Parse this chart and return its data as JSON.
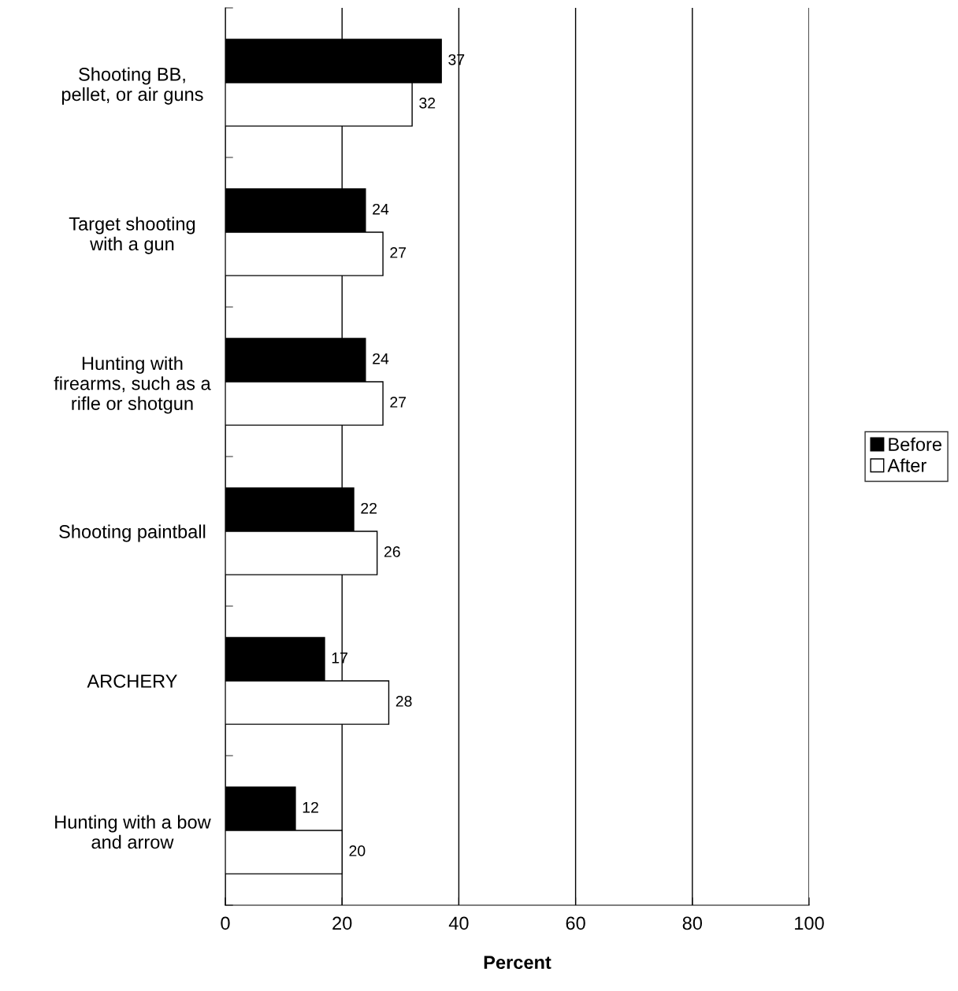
{
  "chart_data": {
    "type": "bar",
    "orientation": "horizontal",
    "categories": [
      "Shooting BB,\npellet, or air guns",
      "Target shooting\nwith a gun",
      "Hunting with\nfirearms, such as a\nrifle or shotgun",
      "Shooting paintball",
      "ARCHERY",
      "Hunting with a bow\nand arrow"
    ],
    "series": [
      {
        "name": "Before",
        "color": "#000000",
        "values": [
          37,
          24,
          24,
          22,
          17,
          12
        ]
      },
      {
        "name": "After",
        "color": "#ffffff",
        "values": [
          32,
          27,
          27,
          26,
          28,
          20
        ]
      }
    ],
    "xlabel": "Percent",
    "xlim": [
      0,
      100
    ],
    "xticks": [
      0,
      20,
      40,
      60,
      80,
      100
    ],
    "grid": "x",
    "legend": "right",
    "data_labels": true
  }
}
